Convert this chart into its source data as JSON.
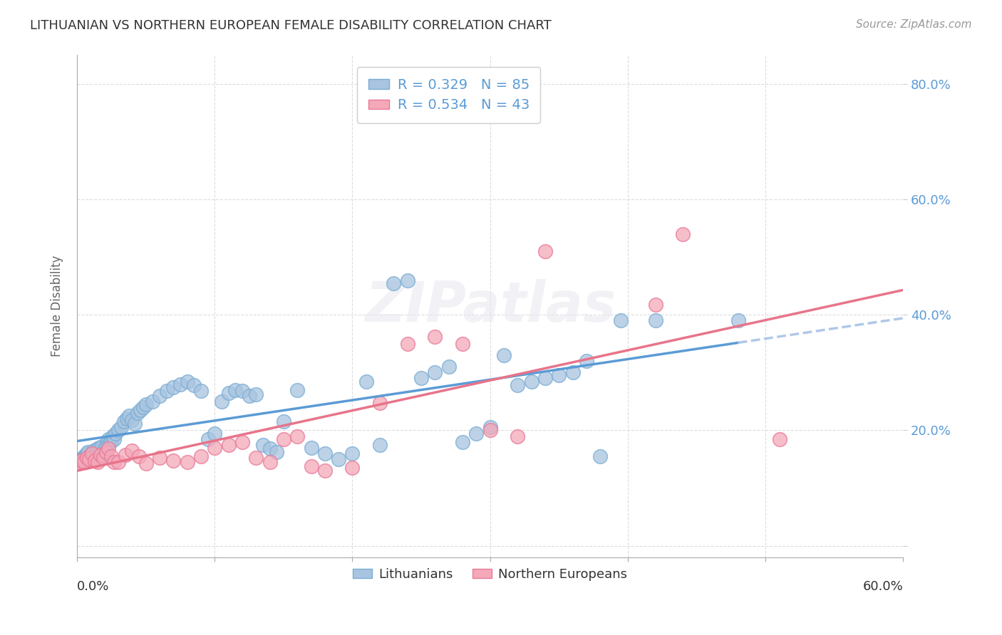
{
  "title": "LITHUANIAN VS NORTHERN EUROPEAN FEMALE DISABILITY CORRELATION CHART",
  "source": "Source: ZipAtlas.com",
  "ylabel": "Female Disability",
  "xlim": [
    0.0,
    0.6
  ],
  "ylim": [
    -0.02,
    0.85
  ],
  "yticks": [
    0.0,
    0.2,
    0.4,
    0.6,
    0.8
  ],
  "ytick_labels": [
    "",
    "20.0%",
    "40.0%",
    "60.0%",
    "80.0%"
  ],
  "bg_color": "#ffffff",
  "grid_color": "#dddddd",
  "lithuanian_color": "#a8c4e0",
  "lithuanian_edge": "#7aadd4",
  "northern_color": "#f4a8b8",
  "northern_edge": "#e87a9a",
  "trendline_lithuanian": "#5b9bd5",
  "trendline_northern": "#e8748a",
  "trendline_extrapolate": "#b0c8e8",
  "R_lith": 0.329,
  "N_lith": 85,
  "R_north": 0.534,
  "N_north": 43,
  "lith_x": [
    0.001,
    0.002,
    0.003,
    0.004,
    0.005,
    0.006,
    0.007,
    0.008,
    0.009,
    0.01,
    0.011,
    0.012,
    0.013,
    0.014,
    0.015,
    0.016,
    0.017,
    0.018,
    0.019,
    0.02,
    0.021,
    0.022,
    0.023,
    0.024,
    0.025,
    0.026,
    0.027,
    0.028,
    0.03,
    0.032,
    0.034,
    0.036,
    0.038,
    0.04,
    0.042,
    0.044,
    0.046,
    0.048,
    0.05,
    0.055,
    0.06,
    0.065,
    0.07,
    0.075,
    0.08,
    0.085,
    0.09,
    0.095,
    0.1,
    0.105,
    0.11,
    0.115,
    0.12,
    0.125,
    0.13,
    0.135,
    0.14,
    0.145,
    0.15,
    0.16,
    0.17,
    0.18,
    0.19,
    0.2,
    0.21,
    0.22,
    0.23,
    0.24,
    0.25,
    0.26,
    0.27,
    0.28,
    0.29,
    0.3,
    0.31,
    0.32,
    0.33,
    0.34,
    0.35,
    0.36,
    0.37,
    0.38,
    0.395,
    0.42,
    0.48
  ],
  "lith_y": [
    0.145,
    0.148,
    0.15,
    0.152,
    0.155,
    0.158,
    0.16,
    0.162,
    0.155,
    0.148,
    0.152,
    0.165,
    0.158,
    0.162,
    0.168,
    0.17,
    0.158,
    0.172,
    0.165,
    0.155,
    0.175,
    0.18,
    0.185,
    0.178,
    0.182,
    0.19,
    0.185,
    0.195,
    0.2,
    0.205,
    0.215,
    0.22,
    0.225,
    0.218,
    0.212,
    0.23,
    0.235,
    0.24,
    0.245,
    0.25,
    0.26,
    0.268,
    0.275,
    0.28,
    0.285,
    0.278,
    0.268,
    0.185,
    0.195,
    0.25,
    0.265,
    0.27,
    0.268,
    0.26,
    0.262,
    0.175,
    0.168,
    0.162,
    0.215,
    0.27,
    0.17,
    0.16,
    0.15,
    0.16,
    0.285,
    0.175,
    0.455,
    0.46,
    0.29,
    0.3,
    0.31,
    0.18,
    0.195,
    0.205,
    0.33,
    0.278,
    0.285,
    0.29,
    0.295,
    0.3,
    0.32,
    0.155,
    0.39,
    0.39,
    0.39
  ],
  "north_x": [
    0.001,
    0.003,
    0.005,
    0.007,
    0.009,
    0.011,
    0.013,
    0.015,
    0.017,
    0.019,
    0.021,
    0.023,
    0.025,
    0.027,
    0.03,
    0.035,
    0.04,
    0.045,
    0.05,
    0.06,
    0.07,
    0.08,
    0.09,
    0.1,
    0.11,
    0.12,
    0.13,
    0.14,
    0.15,
    0.16,
    0.17,
    0.18,
    0.2,
    0.22,
    0.24,
    0.26,
    0.28,
    0.3,
    0.32,
    0.34,
    0.42,
    0.44,
    0.51
  ],
  "north_y": [
    0.142,
    0.148,
    0.145,
    0.152,
    0.15,
    0.16,
    0.148,
    0.145,
    0.158,
    0.152,
    0.162,
    0.168,
    0.155,
    0.145,
    0.145,
    0.158,
    0.165,
    0.155,
    0.142,
    0.152,
    0.148,
    0.145,
    0.155,
    0.17,
    0.175,
    0.18,
    0.152,
    0.145,
    0.185,
    0.19,
    0.138,
    0.13,
    0.135,
    0.248,
    0.35,
    0.362,
    0.35,
    0.2,
    0.19,
    0.51,
    0.418,
    0.54,
    0.185
  ]
}
